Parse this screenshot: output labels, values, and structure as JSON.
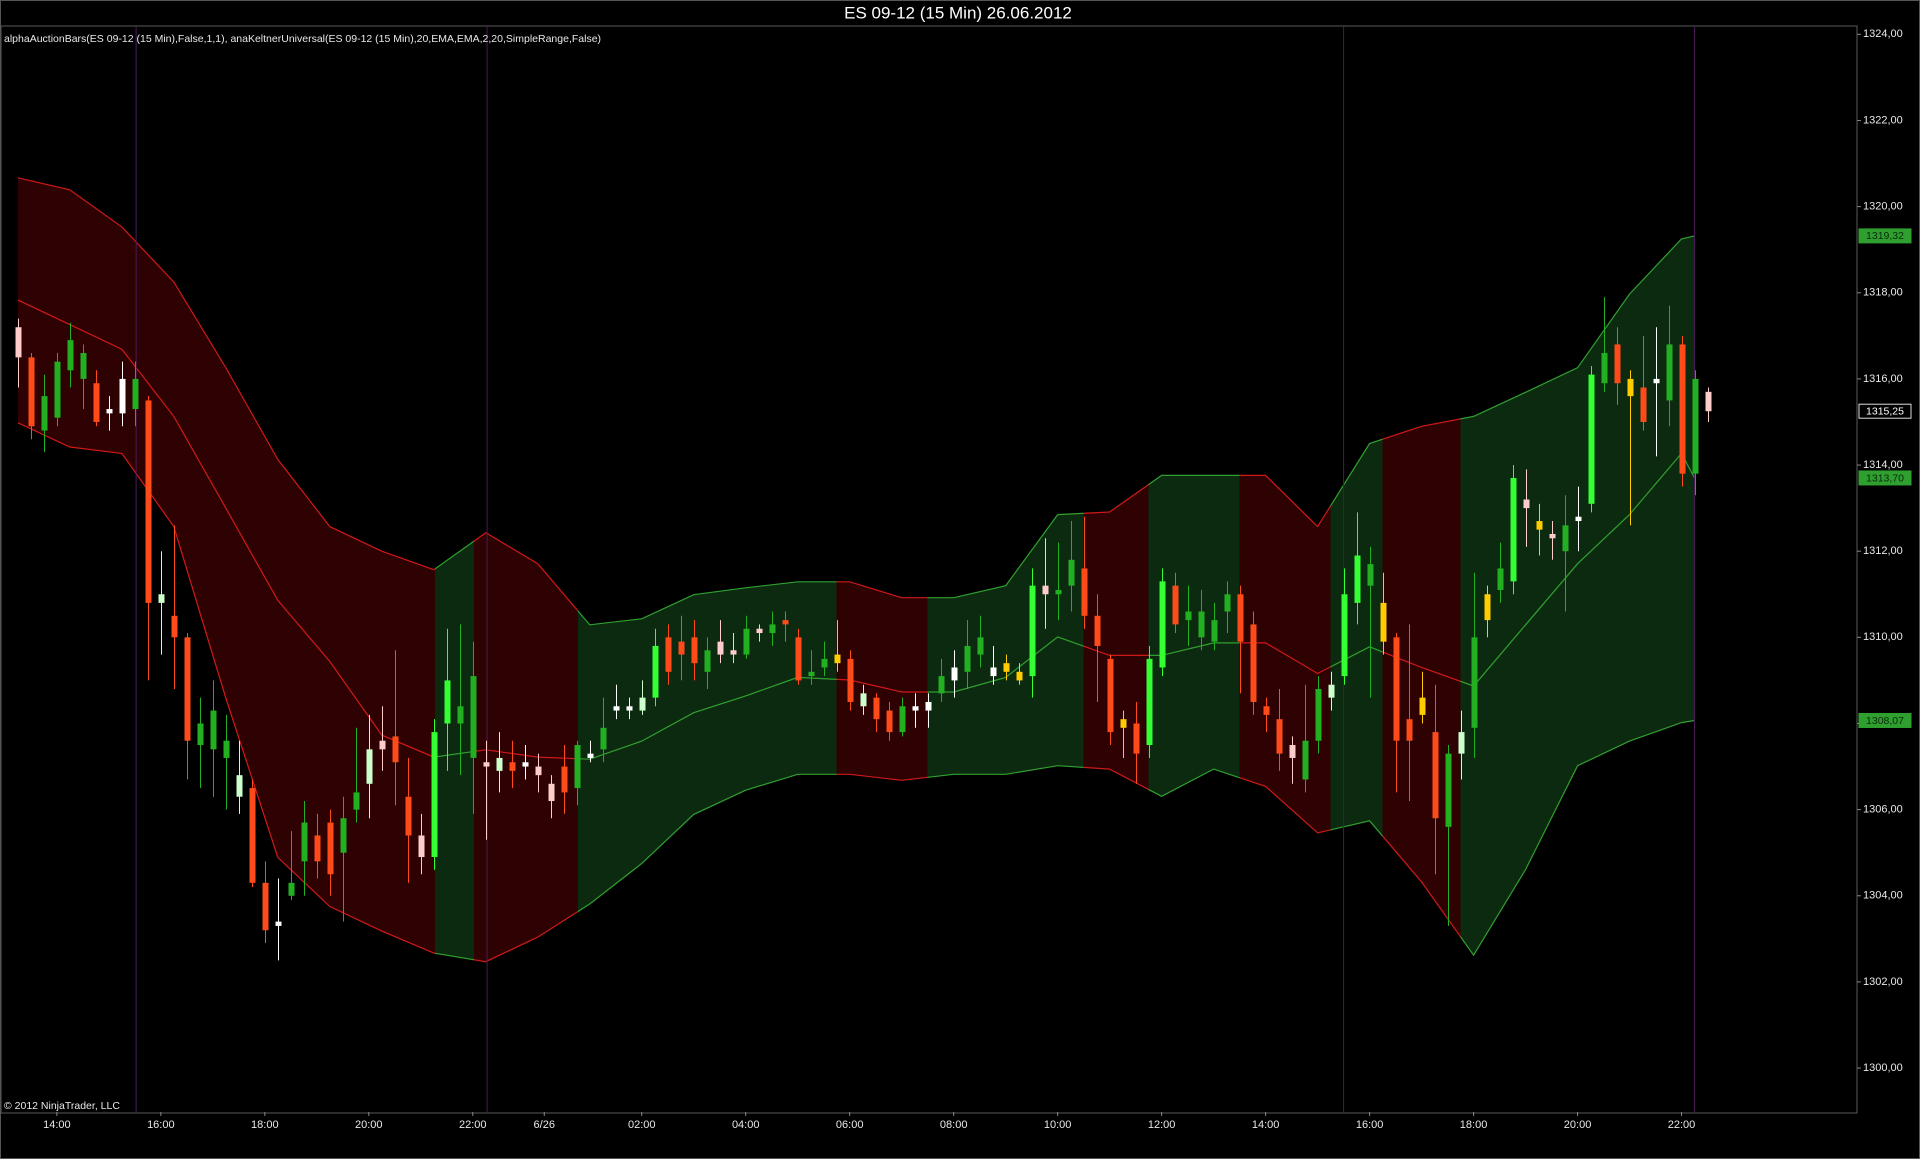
{
  "chart_data": {
    "type": "candlestick",
    "title": "ES 09-12 (15 Min)  26.06.2012",
    "indicator_label": "alphaAuctionBars(ES 09-12 (15 Min),False,1,1), anaKeltnerUniversal(ES 09-12 (15 Min),20,EMA,EMA,2,20,SimpleRange,False)",
    "copyright": "© 2012 NinjaTrader, LLC",
    "background": "#000000",
    "grid": false,
    "xlim": [
      -1.22,
      141.5
    ],
    "ylim": [
      1298.98,
      1324.17
    ],
    "yticks": [
      {
        "value": 1300,
        "label": "1300,00"
      },
      {
        "value": 1302,
        "label": "1302,00"
      },
      {
        "value": 1304,
        "label": "1304,00"
      },
      {
        "value": 1306,
        "label": "1306,00"
      },
      {
        "value": 1308,
        "label": "1308,00"
      },
      {
        "value": 1310,
        "label": "1310,00"
      },
      {
        "value": 1312,
        "label": "1312,00"
      },
      {
        "value": 1314,
        "label": "1314,00"
      },
      {
        "value": 1316,
        "label": "1316,00"
      },
      {
        "value": 1318,
        "label": "1318,00"
      },
      {
        "value": 1320,
        "label": "1320,00"
      },
      {
        "value": 1322,
        "label": "1322,00"
      },
      {
        "value": 1324,
        "label": "1324,00"
      }
    ],
    "xticks": [
      {
        "value": 3,
        "label": "14:00"
      },
      {
        "value": 11,
        "label": "16:00"
      },
      {
        "value": 19,
        "label": "18:00"
      },
      {
        "value": 27,
        "label": "20:00"
      },
      {
        "value": 35,
        "label": "22:00"
      },
      {
        "value": 40.5,
        "label": "6/26"
      },
      {
        "value": 48,
        "label": "02:00"
      },
      {
        "value": 56,
        "label": "04:00"
      },
      {
        "value": 64,
        "label": "06:00"
      },
      {
        "value": 72,
        "label": "08:00"
      },
      {
        "value": 80,
        "label": "10:00"
      },
      {
        "value": 88,
        "label": "12:00"
      },
      {
        "value": 96,
        "label": "14:00"
      },
      {
        "value": 104,
        "label": "16:00"
      },
      {
        "value": 112,
        "label": "18:00"
      },
      {
        "value": 120,
        "label": "20:00"
      },
      {
        "value": 128,
        "label": "22:00"
      }
    ],
    "x": [
      0,
      1,
      2,
      3,
      4,
      5,
      6,
      7,
      8,
      9,
      10,
      11,
      12,
      13,
      14,
      15,
      16,
      17,
      18,
      19,
      20,
      21,
      22,
      23,
      24,
      25,
      26,
      27,
      28,
      29,
      30,
      31,
      32,
      33,
      34,
      35,
      36,
      37,
      38,
      39,
      40,
      41,
      42,
      43,
      44,
      45,
      46,
      47,
      48,
      49,
      50,
      51,
      52,
      53,
      54,
      55,
      56,
      57,
      58,
      59,
      60,
      61,
      62,
      63,
      64,
      65,
      66,
      67,
      68,
      69,
      70,
      71,
      72,
      73,
      74,
      75,
      76,
      77,
      78,
      79,
      80,
      81,
      82,
      83,
      84,
      85,
      86,
      87,
      88,
      89,
      90,
      91,
      92,
      93,
      94,
      95,
      96,
      97,
      98,
      99,
      100,
      101,
      102,
      103,
      104,
      105,
      106,
      107,
      108,
      109,
      110,
      111,
      112,
      113,
      114,
      115,
      116,
      117,
      118,
      119,
      120,
      121,
      122,
      123,
      124,
      125,
      126,
      127,
      128,
      129,
      130
    ],
    "open": [
      1316.5,
      1316.5,
      1314.8,
      1315.1,
      1316.2,
      1316.0,
      1315.9,
      1315.2,
      1315.2,
      1315.3,
      1315.5,
      1310.8,
      1310.5,
      1310.0,
      1307.5,
      1307.4,
      1307.2,
      1306.3,
      1306.5,
      1304.3,
      1303.3,
      1304.0,
      1304.8,
      1305.4,
      1305.7,
      1305.0,
      1306.0,
      1306.6,
      1307.4,
      1307.7,
      1306.3,
      1305.4,
      1304.9,
      1308.0,
      1308.0,
      1307.2,
      1307.0,
      1306.9,
      1307.1,
      1307.1,
      1307.0,
      1306.6,
      1307.0,
      1306.5,
      1307.2,
      1307.4,
      1308.3,
      1308.3,
      1308.3,
      1308.6,
      1310.0,
      1309.9,
      1310.0,
      1309.2,
      1309.6,
      1309.6,
      1309.6,
      1310.1,
      1310.1,
      1310.4,
      1310.0,
      1309.1,
      1309.3,
      1309.4,
      1309.5,
      1308.4,
      1308.6,
      1308.3,
      1307.8,
      1308.3,
      1308.3,
      1308.7,
      1309.0,
      1309.2,
      1309.6,
      1309.1,
      1309.4,
      1309.0,
      1309.1,
      1311.2,
      1311.0,
      1311.2,
      1311.6,
      1310.5,
      1309.5,
      1308.1,
      1308.0,
      1307.5,
      1309.3,
      1311.2,
      1310.4,
      1310.0,
      1309.9,
      1310.6,
      1311.0,
      1310.3,
      1308.4,
      1308.1,
      1307.5,
      1306.7,
      1307.6,
      1308.6,
      1309.1,
      1310.8,
      1311.2,
      1309.9,
      1310.0,
      1308.1,
      1308.6,
      1307.8,
      1305.6,
      1307.3,
      1307.9,
      1310.4,
      1311.1,
      1311.3,
      1313.0,
      1312.7,
      1312.3,
      1312.0,
      1312.7,
      1313.1,
      1315.9,
      1316.8,
      1316.0,
      1315.8,
      1315.9,
      1315.5,
      1316.8,
      1313.8,
      1315.7
    ],
    "high": [
      1317.4,
      1316.6,
      1316.1,
      1316.6,
      1317.3,
      1316.8,
      1316.2,
      1315.6,
      1316.4,
      1316.4,
      1315.6,
      1312.0,
      1312.6,
      1310.1,
      1308.6,
      1309.0,
      1308.2,
      1307.6,
      1306.7,
      1304.8,
      1304.4,
      1305.5,
      1306.2,
      1305.9,
      1306.0,
      1306.3,
      1307.9,
      1308.2,
      1308.4,
      1309.7,
      1307.2,
      1305.9,
      1308.1,
      1310.2,
      1310.3,
      1309.9,
      1307.6,
      1307.8,
      1307.6,
      1307.5,
      1307.3,
      1306.8,
      1307.5,
      1307.6,
      1307.6,
      1308.6,
      1308.9,
      1308.6,
      1309.0,
      1310.2,
      1310.3,
      1310.5,
      1310.4,
      1310.0,
      1310.4,
      1310.1,
      1310.5,
      1310.3,
      1310.6,
      1310.6,
      1310.2,
      1309.7,
      1309.9,
      1310.4,
      1309.7,
      1308.9,
      1308.7,
      1308.5,
      1308.6,
      1308.7,
      1308.7,
      1309.5,
      1309.7,
      1310.4,
      1310.5,
      1309.8,
      1309.6,
      1309.4,
      1311.6,
      1312.3,
      1312.2,
      1312.7,
      1312.8,
      1311.0,
      1309.6,
      1308.3,
      1308.5,
      1309.8,
      1311.6,
      1311.5,
      1311.2,
      1311.1,
      1310.8,
      1311.3,
      1311.2,
      1310.6,
      1308.6,
      1308.8,
      1307.7,
      1308.9,
      1309.1,
      1309.2,
      1311.6,
      1312.9,
      1312.1,
      1311.5,
      1310.1,
      1310.3,
      1309.2,
      1308.9,
      1307.5,
      1308.3,
      1311.5,
      1311.2,
      1312.2,
      1314.0,
      1313.9,
      1313.1,
      1312.7,
      1313.3,
      1313.5,
      1316.3,
      1317.9,
      1317.2,
      1316.2,
      1317.0,
      1317.2,
      1317.7,
      1317.0,
      1316.2,
      1315.8
    ],
    "low": [
      1315.8,
      1314.6,
      1314.3,
      1314.9,
      1315.8,
      1315.3,
      1314.9,
      1314.8,
      1314.9,
      1314.9,
      1309.0,
      1309.6,
      1308.8,
      1306.7,
      1306.5,
      1306.3,
      1306.0,
      1305.9,
      1304.2,
      1302.9,
      1302.5,
      1303.9,
      1304.0,
      1304.4,
      1304.0,
      1303.4,
      1305.7,
      1305.8,
      1306.9,
      1306.1,
      1304.3,
      1304.5,
      1304.6,
      1306.9,
      1306.8,
      1305.9,
      1305.3,
      1306.4,
      1306.5,
      1306.7,
      1306.4,
      1305.8,
      1305.9,
      1306.1,
      1307.1,
      1307.1,
      1308.1,
      1308.1,
      1308.2,
      1308.4,
      1308.9,
      1309.0,
      1309.0,
      1308.8,
      1309.4,
      1309.4,
      1309.5,
      1309.9,
      1309.8,
      1309.9,
      1308.9,
      1308.9,
      1309.1,
      1309.2,
      1308.3,
      1308.2,
      1307.8,
      1307.6,
      1307.7,
      1307.9,
      1307.9,
      1308.5,
      1308.6,
      1308.8,
      1309.3,
      1308.9,
      1309.0,
      1308.9,
      1308.6,
      1310.2,
      1310.4,
      1310.6,
      1310.2,
      1308.5,
      1307.5,
      1307.2,
      1306.6,
      1307.2,
      1309.1,
      1310.1,
      1309.8,
      1309.7,
      1309.7,
      1310.1,
      1308.7,
      1308.2,
      1307.8,
      1306.9,
      1306.6,
      1306.4,
      1307.3,
      1308.3,
      1308.9,
      1310.3,
      1308.6,
      1309.6,
      1306.4,
      1306.2,
      1308.0,
      1304.5,
      1303.3,
      1306.7,
      1307.2,
      1310.0,
      1310.8,
      1311.0,
      1312.1,
      1311.9,
      1311.8,
      1310.6,
      1312.0,
      1312.9,
      1315.7,
      1315.4,
      1312.6,
      1314.8,
      1314.2,
      1314.9,
      1313.5,
      1313.3,
      1315.0
    ],
    "close": [
      1317.2,
      1314.9,
      1315.6,
      1316.4,
      1316.9,
      1316.6,
      1315.0,
      1315.3,
      1316.0,
      1316.0,
      1310.8,
      1311.0,
      1310.0,
      1307.6,
      1308.0,
      1308.3,
      1307.6,
      1306.8,
      1304.3,
      1303.2,
      1303.4,
      1304.3,
      1305.7,
      1304.8,
      1304.5,
      1305.8,
      1306.4,
      1307.4,
      1307.6,
      1307.1,
      1305.4,
      1304.9,
      1307.8,
      1309.0,
      1308.4,
      1309.1,
      1307.1,
      1307.2,
      1306.9,
      1307.0,
      1306.8,
      1306.2,
      1306.4,
      1307.5,
      1307.3,
      1307.9,
      1308.4,
      1308.4,
      1308.6,
      1309.8,
      1309.2,
      1309.6,
      1309.4,
      1309.7,
      1309.9,
      1309.7,
      1310.2,
      1310.2,
      1310.3,
      1310.3,
      1309.0,
      1309.2,
      1309.5,
      1309.6,
      1308.5,
      1308.7,
      1308.1,
      1307.8,
      1308.4,
      1308.4,
      1308.5,
      1309.1,
      1309.3,
      1309.8,
      1310.0,
      1309.3,
      1309.2,
      1309.2,
      1311.2,
      1311.0,
      1311.1,
      1311.8,
      1310.5,
      1309.8,
      1307.8,
      1307.9,
      1307.3,
      1309.5,
      1311.3,
      1310.3,
      1310.6,
      1310.6,
      1310.4,
      1311.0,
      1309.9,
      1308.5,
      1308.2,
      1307.3,
      1307.2,
      1307.6,
      1308.8,
      1308.9,
      1311.0,
      1311.9,
      1311.7,
      1310.8,
      1307.6,
      1307.6,
      1308.2,
      1305.8,
      1307.3,
      1307.8,
      1310.0,
      1311.0,
      1311.6,
      1313.7,
      1313.2,
      1312.5,
      1312.4,
      1312.6,
      1312.8,
      1316.1,
      1316.6,
      1315.9,
      1315.6,
      1315.0,
      1316.0,
      1316.8,
      1313.8,
      1316.0,
      1315.25
    ],
    "colors": [
      "#ffcccc",
      "#ff4a1a",
      "#22b022",
      "#22b022",
      "#22b022",
      "#22b022",
      "#ff4a1a",
      "#ffffff",
      "#ffffff",
      "#22b022",
      "#ff4a1a",
      "#ccffcc",
      "#ff4a1a",
      "#ff4a1a",
      "#22b022",
      "#22b022",
      "#22b022",
      "#ccffcc",
      "#ff4a1a",
      "#ff4a1a",
      "#ffffff",
      "#22b022",
      "#22b022",
      "#ff4a1a",
      "#ff4a1a",
      "#22b022",
      "#22b022",
      "#ccffcc",
      "#ffcccc",
      "#ff4a1a",
      "#ff4a1a",
      "#ffcccc",
      "#33ff33",
      "#33ff33",
      "#22b022",
      "#22b022",
      "#ffcccc",
      "#ccffcc",
      "#ff4a1a",
      "#ffffff",
      "#ffcccc",
      "#ffcccc",
      "#ff4a1a",
      "#22b022",
      "#ffffff",
      "#22b022",
      "#ffffff",
      "#ffffff",
      "#ccffcc",
      "#33ff33",
      "#ff4a1a",
      "#ff4a1a",
      "#ff4a1a",
      "#22b022",
      "#ffcccc",
      "#ffcccc",
      "#22b022",
      "#ffcccc",
      "#22b022",
      "#ff4a1a",
      "#ff4a1a",
      "#22b022",
      "#22b022",
      "#ffcc00",
      "#ff4a1a",
      "#ccffcc",
      "#ff4a1a",
      "#ff4a1a",
      "#22b022",
      "#ffffff",
      "#ffffff",
      "#22b022",
      "#ffffff",
      "#22b022",
      "#22b022",
      "#ffffff",
      "#ffcc00",
      "#ffcc00",
      "#33ff33",
      "#ffcccc",
      "#22b022",
      "#22b022",
      "#ff4a1a",
      "#ff4a1a",
      "#ff4a1a",
      "#ffcc00",
      "#ff4a1a",
      "#33ff33",
      "#33ff33",
      "#ff4a1a",
      "#22b022",
      "#22b022",
      "#22b022",
      "#22b022",
      "#ff4a1a",
      "#ff4a1a",
      "#ff4a1a",
      "#ff4a1a",
      "#ffcccc",
      "#22b022",
      "#22b022",
      "#ccffcc",
      "#33ff33",
      "#33ff33",
      "#22b022",
      "#ffcc00",
      "#ff4a1a",
      "#ff4a1a",
      "#ffcc00",
      "#ff4a1a",
      "#22b022",
      "#ccffcc",
      "#22b022",
      "#ffcc00",
      "#22b022",
      "#33ff33",
      "#ffcccc",
      "#ffcc00",
      "#ffcccc",
      "#22b022",
      "#ffffff",
      "#33ff33",
      "#22b022",
      "#ff4a1a",
      "#ffcc00",
      "#ff4a1a",
      "#ffffff",
      "#22b022",
      "#ff4a1a",
      "#22b022",
      "#ffcccc"
    ],
    "bands": {
      "x": [
        0,
        4,
        8,
        12,
        16,
        20,
        24,
        28,
        32,
        36,
        40,
        44,
        48,
        52,
        56,
        60,
        64,
        68,
        72,
        76,
        80,
        84,
        88,
        92,
        96,
        100,
        104,
        108,
        112,
        116,
        120,
        124,
        128,
        129
      ],
      "upper": [
        1320.67,
        1320.39,
        1319.53,
        1318.25,
        1316.26,
        1314.13,
        1312.57,
        1312.0,
        1311.57,
        1312.43,
        1311.71,
        1310.29,
        1310.43,
        1310.99,
        1311.15,
        1311.29,
        1311.29,
        1310.92,
        1310.92,
        1311.2,
        1312.85,
        1312.91,
        1313.76,
        1313.76,
        1313.76,
        1312.57,
        1314.5,
        1314.9,
        1315.13,
        1315.69,
        1316.26,
        1317.97,
        1319.25,
        1319.32
      ],
      "middle": [
        1317.83,
        1317.26,
        1316.69,
        1315.13,
        1313.0,
        1310.86,
        1309.44,
        1307.73,
        1307.22,
        1307.39,
        1307.22,
        1307.17,
        1307.59,
        1308.25,
        1308.64,
        1309.07,
        1309.01,
        1308.73,
        1308.73,
        1309.07,
        1310.01,
        1309.58,
        1309.58,
        1309.87,
        1309.87,
        1309.16,
        1309.78,
        1309.3,
        1308.87,
        1310.29,
        1311.71,
        1312.85,
        1314.27,
        1313.7
      ],
      "lower": [
        1314.98,
        1314.42,
        1314.27,
        1312.57,
        1308.59,
        1304.89,
        1303.75,
        1303.18,
        1302.67,
        1302.47,
        1303.04,
        1303.81,
        1304.75,
        1305.89,
        1306.45,
        1306.82,
        1306.82,
        1306.68,
        1306.82,
        1306.82,
        1307.02,
        1306.94,
        1306.31,
        1306.94,
        1306.54,
        1305.46,
        1305.74,
        1304.32,
        1302.62,
        1304.61,
        1307.02,
        1307.59,
        1308.02,
        1308.07
      ],
      "zones": [
        {
          "start": 0,
          "end": 32.1,
          "fill": "#2e0202",
          "line": "#d01818"
        },
        {
          "start": 32.1,
          "end": 35.1,
          "fill": "#0c2a10",
          "line": "#2fa02f"
        },
        {
          "start": 35.1,
          "end": 43.1,
          "fill": "#2e0202",
          "line": "#d01818"
        },
        {
          "start": 43.1,
          "end": 63,
          "fill": "#0c2a10",
          "line": "#2fa02f"
        },
        {
          "start": 63,
          "end": 70,
          "fill": "#2e0202",
          "line": "#d01818"
        },
        {
          "start": 70,
          "end": 82,
          "fill": "#0c2a10",
          "line": "#2fa02f"
        },
        {
          "start": 82,
          "end": 87,
          "fill": "#2e0202",
          "line": "#d01818"
        },
        {
          "start": 87,
          "end": 94,
          "fill": "#0c2a10",
          "line": "#2fa02f"
        },
        {
          "start": 94,
          "end": 101,
          "fill": "#2e0202",
          "line": "#d01818"
        },
        {
          "start": 101,
          "end": 105,
          "fill": "#0c2a10",
          "line": "#2fa02f"
        },
        {
          "start": 105,
          "end": 111,
          "fill": "#2e0202",
          "line": "#d01818"
        },
        {
          "start": 111,
          "end": 129,
          "fill": "#0c2a10",
          "line": "#2fa02f"
        }
      ]
    },
    "session_lines": {
      "values": [
        9.1,
        36.1,
        102,
        129
      ],
      "color": "#4a1a58"
    },
    "price_markers": [
      {
        "value": 1319.32,
        "label": "1319,32",
        "color": "#2fa02f"
      },
      {
        "value": 1315.25,
        "label": "1315,25",
        "color": "#000000"
      },
      {
        "value": 1313.7,
        "label": "1313,70",
        "color": "#2fa02f"
      },
      {
        "value": 1308.07,
        "label": "1308,07",
        "color": "#2fa02f"
      }
    ]
  }
}
